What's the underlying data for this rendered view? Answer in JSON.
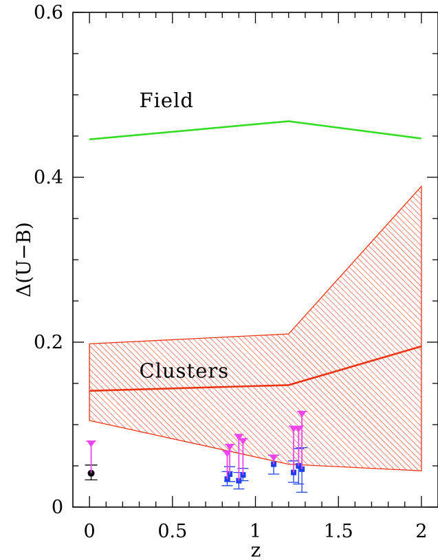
{
  "chart_data": {
    "type": "line",
    "xlabel": "z",
    "ylabel": "Δ(U−B)",
    "xlim": [
      -0.1,
      2.1
    ],
    "ylim": [
      0,
      0.6
    ],
    "xticks": [
      0,
      0.5,
      1,
      1.5,
      2
    ],
    "xtick_labels": [
      "0",
      "0.5",
      "1",
      "1.5",
      "2"
    ],
    "yticks": [
      0,
      0.2,
      0.4,
      0.6
    ],
    "ytick_labels": [
      "0",
      "0.2",
      "0.4",
      "0.6"
    ],
    "grid": false,
    "annotations": [
      {
        "text": "Field",
        "x": 0.3,
        "y": 0.485
      },
      {
        "text": "Clusters",
        "x": 0.3,
        "y": 0.157
      }
    ],
    "lines": [
      {
        "color": "#33dd22",
        "x": [
          0,
          1.2,
          2
        ],
        "y": [
          0.446,
          0.468,
          0.447
        ]
      },
      {
        "color": "#ee3311",
        "x": [
          0,
          1.2,
          2
        ],
        "y": [
          0.141,
          0.148,
          0.195
        ]
      }
    ],
    "band": {
      "color": "#ee3311",
      "x": [
        0,
        1.2,
        2
      ],
      "upper": [
        0.198,
        0.21,
        0.389
      ],
      "lower": [
        0.105,
        0.052,
        0.044
      ]
    },
    "series": [
      {
        "marker": "circle",
        "color": "#000000",
        "points": [
          {
            "x": 0.01,
            "y": 0.041,
            "lo": 0.033,
            "hi": 0.051
          }
        ]
      },
      {
        "marker": "square",
        "color": "#1a3ff0",
        "points": [
          {
            "x": 0.83,
            "y": 0.034,
            "lo": 0.026,
            "hi": 0.043
          },
          {
            "x": 0.845,
            "y": 0.04,
            "lo": 0.031,
            "hi": 0.049
          },
          {
            "x": 0.9,
            "y": 0.032,
            "lo": 0.022,
            "hi": 0.042
          },
          {
            "x": 0.925,
            "y": 0.039,
            "lo": 0.032,
            "hi": 0.047
          },
          {
            "x": 1.11,
            "y": 0.052,
            "lo": 0.04,
            "hi": 0.063
          },
          {
            "x": 1.23,
            "y": 0.042,
            "lo": 0.03,
            "hi": 0.056
          },
          {
            "x": 1.26,
            "y": 0.05,
            "lo": 0.028,
            "hi": 0.071
          },
          {
            "x": 1.28,
            "y": 0.046,
            "lo": 0.018,
            "hi": 0.072
          }
        ]
      },
      {
        "marker": "triangle-down",
        "color": "#ee44ee",
        "points": [
          {
            "x": 0.01,
            "y": 0.08,
            "base": 0.041
          },
          {
            "x": 0.83,
            "y": 0.068,
            "base": 0.034
          },
          {
            "x": 0.845,
            "y": 0.076,
            "base": 0.04
          },
          {
            "x": 0.9,
            "y": 0.088,
            "base": 0.032
          },
          {
            "x": 0.925,
            "y": 0.083,
            "base": 0.039
          },
          {
            "x": 1.11,
            "y": 0.063,
            "base": 0.052
          },
          {
            "x": 1.23,
            "y": 0.098,
            "base": 0.042
          },
          {
            "x": 1.26,
            "y": 0.098,
            "base": 0.05
          },
          {
            "x": 1.28,
            "y": 0.116,
            "base": 0.046
          }
        ]
      }
    ]
  }
}
